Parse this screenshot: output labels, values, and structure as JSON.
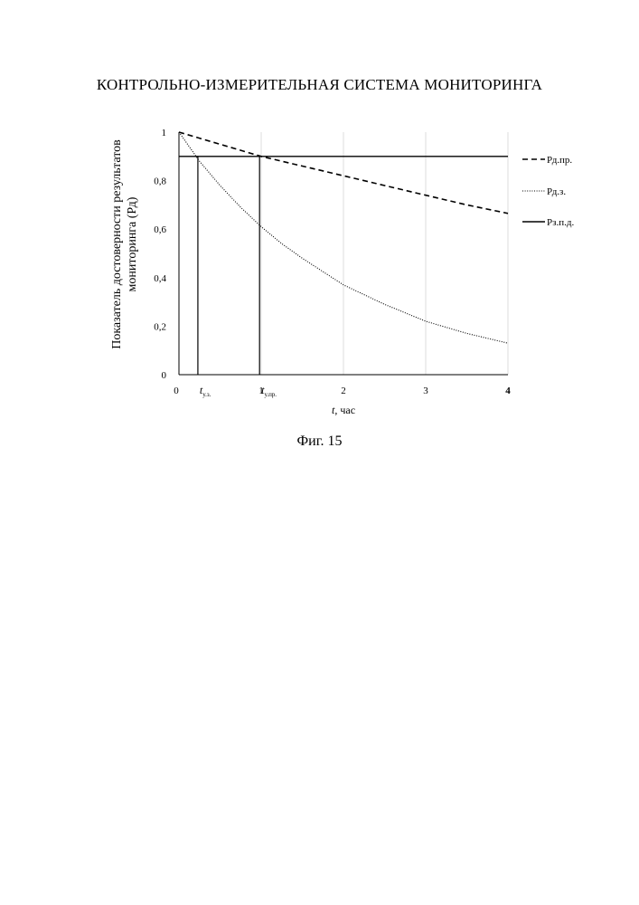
{
  "header": {
    "title": "КОНТРОЛЬНО-ИЗМЕРИТЕЛЬНАЯ СИСТЕМА МОНИТОРИНГА"
  },
  "figure": {
    "caption": "Фиг. 15"
  },
  "chart_data": {
    "type": "line",
    "title": "",
    "xlabel_italic": "t",
    "xlabel_rest": ", час",
    "ylabel_line1": "Показатель достоверности  результатов",
    "ylabel_line2": "мониторинга (Рд)",
    "xlim": [
      0,
      4
    ],
    "ylim": [
      0,
      1
    ],
    "x_ticks": [
      0,
      1,
      2,
      3,
      4
    ],
    "x_tick_labels": [
      "0",
      "1",
      "2",
      "3",
      "4"
    ],
    "y_ticks": [
      0,
      0.2,
      0.4,
      0.6,
      0.8,
      1
    ],
    "y_tick_labels": [
      "0",
      "0,2",
      "0,4",
      "0,6",
      "0,8",
      "1"
    ],
    "grid": "vertical light lines at x = 1, 2, 3, 4",
    "legend_position": "right",
    "series": [
      {
        "name": "Рд.пр.",
        "style": "dashed",
        "x": [
          0,
          0.5,
          1,
          1.5,
          2,
          2.5,
          3,
          3.5,
          4
        ],
        "y": [
          1,
          0.95,
          0.9,
          0.86,
          0.82,
          0.78,
          0.74,
          0.7,
          0.665
        ]
      },
      {
        "name": "Рд.з.",
        "style": "dotted",
        "x": [
          0,
          0.25,
          0.5,
          0.75,
          1,
          1.25,
          1.5,
          2,
          2.5,
          3,
          3.5,
          4
        ],
        "y": [
          1,
          0.88,
          0.78,
          0.69,
          0.61,
          0.54,
          0.48,
          0.37,
          0.29,
          0.22,
          0.17,
          0.13
        ]
      },
      {
        "name": "Рз.п.д.",
        "style": "solid",
        "x": [
          0,
          4
        ],
        "y": [
          0.9,
          0.9
        ]
      }
    ],
    "markers": [
      {
        "x": 0.23,
        "label_main": "t",
        "label_sub": "у.з."
      },
      {
        "x": 0.98,
        "label_main": "t",
        "label_sub": "у.пр."
      }
    ]
  }
}
